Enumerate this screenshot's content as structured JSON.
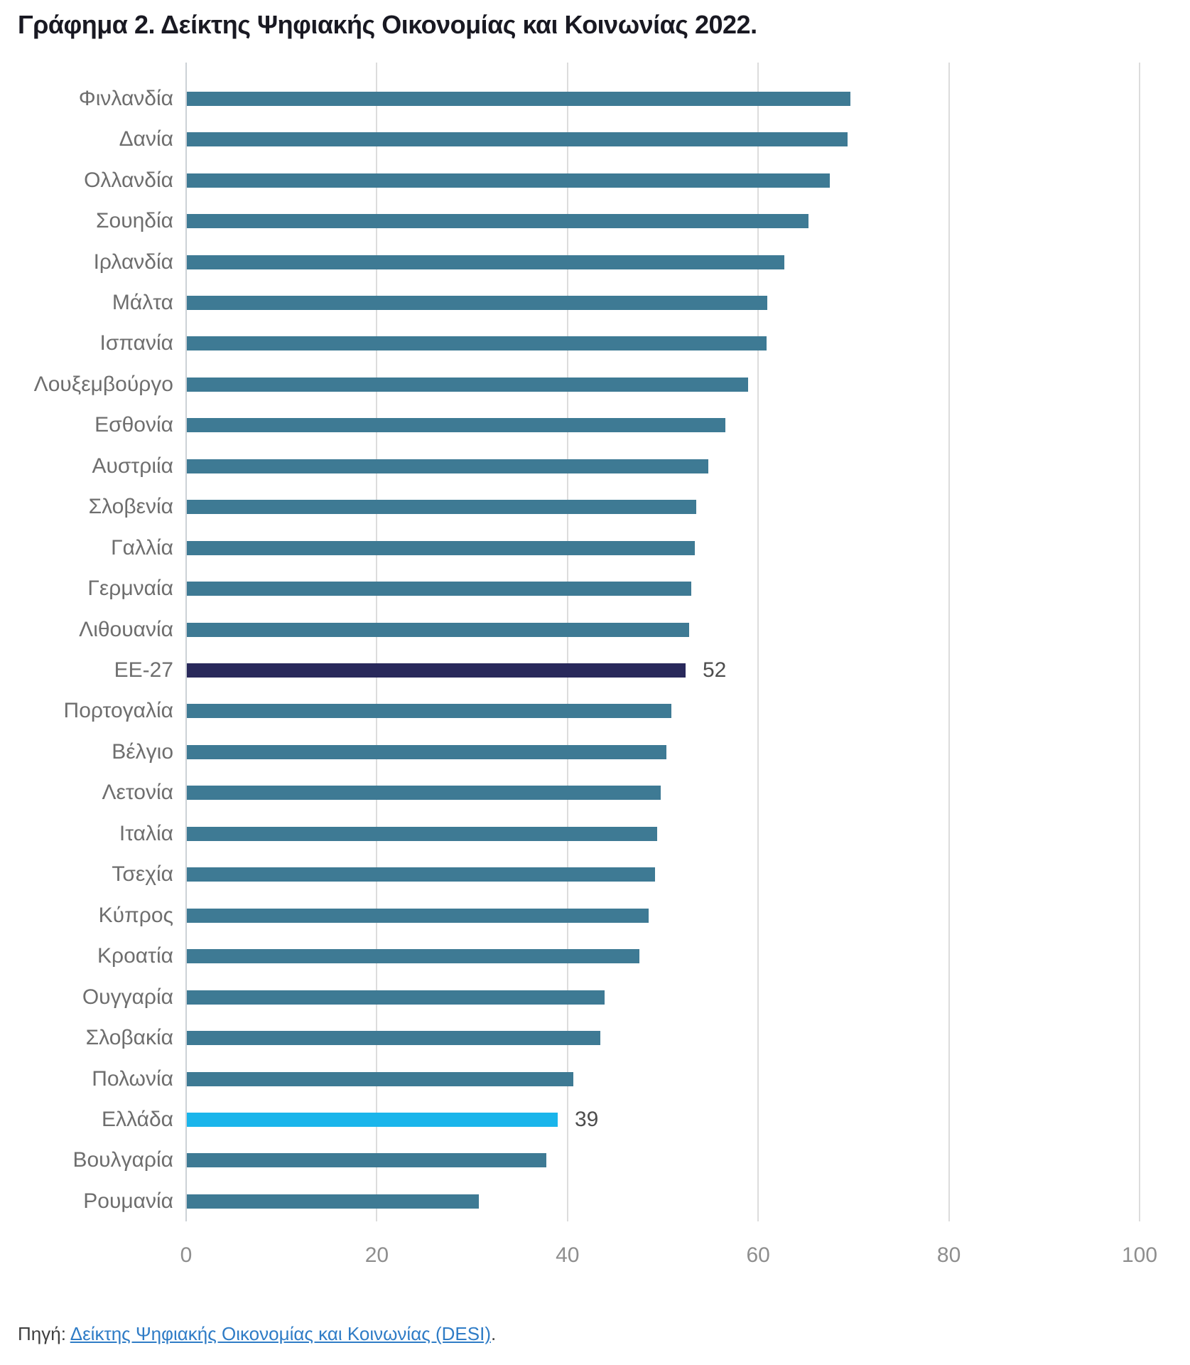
{
  "page": {
    "title": "Γράφημα 2. Δείκτης Ψηφιακής Οικονομίας και Κοινωνίας 2022.",
    "source": {
      "prefix": "Πηγή:",
      "link": "Δείκτης Ψηφιακής Οικονομίας και Κοινωνίας (DESI)",
      "suffix": "."
    }
  },
  "colors": {
    "bar_default": "#3e7a94",
    "bar_eu": "#29295b",
    "bar_highlight": "#1ab5eb",
    "grid": "#dcdcdc",
    "axis_zero_line": "#ccd1d6",
    "category_label": "#6e6e6e",
    "value_label": "#4d4d4d",
    "tick_label": "#8e8e8e",
    "title_text": "#191922",
    "link_blue": "#2f7cc6",
    "source_text": "#3f3f3f"
  },
  "chart_data": {
    "type": "bar",
    "orientation": "horizontal",
    "title": "Γράφημα 2. Δείκτης Ψηφιακής Οικονομίας και Κοινωνίας 2022.",
    "xlabel": "",
    "ylabel": "",
    "xlim": [
      0,
      100
    ],
    "x_ticks": [
      0,
      20,
      40,
      60,
      80,
      100
    ],
    "grid": "vertical-only",
    "legend": "none",
    "highlight_notes": "ΕΕ-27 bar is dark navy with data label 52; Ελλάδα bar is bright cyan with data label 39; all other bars teal",
    "rows": [
      {
        "label": "Φινλανδία",
        "value": 69.6,
        "role": "default",
        "data_label": null
      },
      {
        "label": "Δανία",
        "value": 69.3,
        "role": "default",
        "data_label": null
      },
      {
        "label": "Ολλανδία",
        "value": 67.4,
        "role": "default",
        "data_label": null
      },
      {
        "label": "Σουηδία",
        "value": 65.2,
        "role": "default",
        "data_label": null
      },
      {
        "label": "Ιρλανδία",
        "value": 62.7,
        "role": "default",
        "data_label": null
      },
      {
        "label": "Μάλτα",
        "value": 60.9,
        "role": "default",
        "data_label": null
      },
      {
        "label": "Ισπανία",
        "value": 60.8,
        "role": "default",
        "data_label": null
      },
      {
        "label": "Λουξεμβούργο",
        "value": 58.9,
        "role": "default",
        "data_label": null
      },
      {
        "label": "Εσθονία",
        "value": 56.5,
        "role": "default",
        "data_label": null
      },
      {
        "label": "Αυστριία",
        "value": 54.7,
        "role": "default",
        "data_label": null
      },
      {
        "label": "Σλοβενία",
        "value": 53.4,
        "role": "default",
        "data_label": null
      },
      {
        "label": "Γαλλία",
        "value": 53.3,
        "role": "default",
        "data_label": null
      },
      {
        "label": "Γερμναία",
        "value": 52.9,
        "role": "default",
        "data_label": null
      },
      {
        "label": "Λιθουανία",
        "value": 52.7,
        "role": "default",
        "data_label": null
      },
      {
        "label": "ΕΕ-27",
        "value": 52.3,
        "role": "eu",
        "data_label": "52"
      },
      {
        "label": "Πορτογαλία",
        "value": 50.8,
        "role": "default",
        "data_label": null
      },
      {
        "label": "Βέλγιο",
        "value": 50.3,
        "role": "default",
        "data_label": null
      },
      {
        "label": "Λετονία",
        "value": 49.7,
        "role": "default",
        "data_label": null
      },
      {
        "label": "Ιταλία",
        "value": 49.3,
        "role": "default",
        "data_label": null
      },
      {
        "label": "Τσεχία",
        "value": 49.1,
        "role": "default",
        "data_label": null
      },
      {
        "label": "Κύπρος",
        "value": 48.4,
        "role": "default",
        "data_label": null
      },
      {
        "label": "Κροατία",
        "value": 47.5,
        "role": "default",
        "data_label": null
      },
      {
        "label": "Ουγγαρία",
        "value": 43.8,
        "role": "default",
        "data_label": null
      },
      {
        "label": "Σλοβακία",
        "value": 43.4,
        "role": "default",
        "data_label": null
      },
      {
        "label": "Πολωνία",
        "value": 40.5,
        "role": "default",
        "data_label": null
      },
      {
        "label": "Ελλάδα",
        "value": 38.9,
        "role": "highlight",
        "data_label": "39"
      },
      {
        "label": "Βουλγαρία",
        "value": 37.7,
        "role": "default",
        "data_label": null
      },
      {
        "label": "Ρουμανία",
        "value": 30.6,
        "role": "default",
        "data_label": null
      }
    ]
  }
}
